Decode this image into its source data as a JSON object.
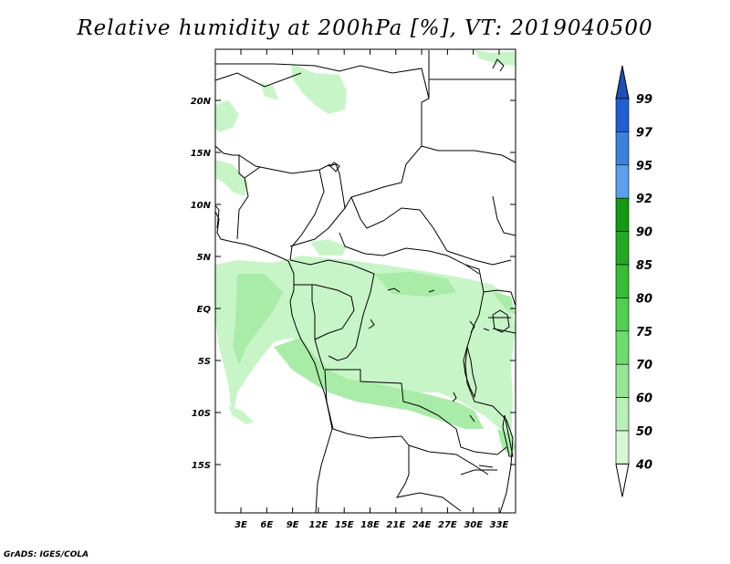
{
  "title": "Relative humidity at 200hPa [%], VT: 2019040500",
  "credit": "GrADS: IGES/COLA",
  "map": {
    "lat_ticks": [
      "20N",
      "15N",
      "10N",
      "5N",
      "EQ",
      "5S",
      "10S",
      "15S"
    ],
    "lon_ticks": [
      "3E",
      "6E",
      "9E",
      "12E",
      "15E",
      "18E",
      "21E",
      "24E",
      "27E",
      "30E",
      "33E"
    ]
  },
  "colorbar": {
    "levels": [
      "99",
      "97",
      "95",
      "92",
      "90",
      "85",
      "80",
      "75",
      "70",
      "60",
      "50",
      "40"
    ],
    "colors": [
      "#1f5fd0",
      "#3a82dc",
      "#5aa0ea",
      "#129a12",
      "#22aa22",
      "#37bd37",
      "#4fd04f",
      "#6fdc6f",
      "#96e696",
      "#b8f0b8",
      "#d6f6d6",
      "#eefbee"
    ],
    "top_arrow_color": "#1f50b8",
    "bottom_arrow_color": "#ffffff"
  },
  "fill_color": "#c8f5c8",
  "fill_color_dark": "#a8eca8"
}
